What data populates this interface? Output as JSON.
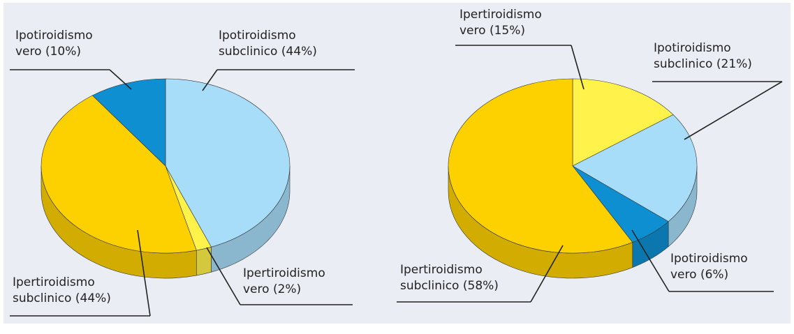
{
  "chart_data": [
    {
      "type": "pie",
      "categories": [
        "Ipotiroidismo subclinico",
        "Ipertiroidismo vero",
        "Ipertiroidismo subclinico",
        "Ipotiroidismo vero"
      ],
      "values": [
        44,
        2,
        44,
        10
      ],
      "value_labels": [
        "(44%)",
        "(2%)",
        "(44%)",
        "(10%)"
      ],
      "colors": [
        "#a7ddf8",
        "#fff24a",
        "#fdd000",
        "#0d8fd2"
      ]
    },
    {
      "type": "pie",
      "categories": [
        "Ipertiroidismo vero",
        "Ipotiroidismo subclinico",
        "Ipotiroidismo vero",
        "Ipertiroidismo subclinico"
      ],
      "values": [
        15,
        21,
        6,
        58
      ],
      "value_labels": [
        "(15%)",
        "(21%)",
        "(6%)",
        "(58%)"
      ],
      "colors": [
        "#fff24a",
        "#a7ddf8",
        "#0d8fd2",
        "#fdd000"
      ]
    }
  ]
}
